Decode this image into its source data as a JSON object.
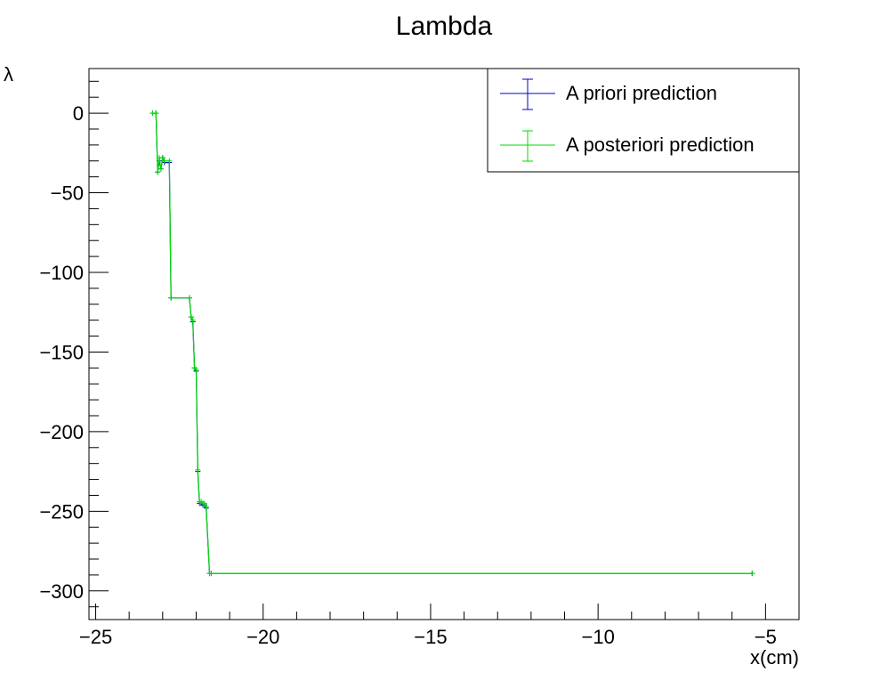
{
  "chart_data": {
    "type": "line",
    "title": "Lambda",
    "xlabel": "x(cm)",
    "ylabel": "λ",
    "xlim": [
      -25.2,
      -4.0
    ],
    "ylim": [
      -318,
      28
    ],
    "x_ticks": [
      {
        "value": -25,
        "label": "−25"
      },
      {
        "value": -20,
        "label": "−20"
      },
      {
        "value": -15,
        "label": "−15"
      },
      {
        "value": -10,
        "label": "−10"
      },
      {
        "value": -5,
        "label": "−5"
      }
    ],
    "y_ticks": [
      {
        "value": 0,
        "label": "0"
      },
      {
        "value": -50,
        "label": "−50"
      },
      {
        "value": -100,
        "label": "−100"
      },
      {
        "value": -150,
        "label": "−150"
      },
      {
        "value": -200,
        "label": "−200"
      },
      {
        "value": -250,
        "label": "−250"
      },
      {
        "value": -300,
        "label": "−300"
      }
    ],
    "legend_position": "top-right",
    "grid": false,
    "series": [
      {
        "name": "A priori prediction",
        "color": "#0000cc",
        "x": [
          -23.3,
          -23.2,
          -23.15,
          -23.1,
          -23.05,
          -23.0,
          -22.95,
          -22.8,
          -22.75,
          -22.2,
          -22.15,
          -22.1,
          -22.05,
          -22.0,
          -21.95,
          -21.9,
          -21.85,
          -21.8,
          -21.75,
          -21.7,
          -21.6,
          -21.55,
          -5.4
        ],
        "y": [
          0,
          0,
          -37,
          -30,
          -35,
          -28,
          -31,
          -31,
          -116,
          -116,
          -128,
          -131,
          -160,
          -162,
          -225,
          -245,
          -245,
          -246,
          -246,
          -248,
          -289,
          -289,
          -289
        ]
      },
      {
        "name": "A posteriori prediction",
        "color": "#00dd00",
        "x": [
          -23.3,
          -23.2,
          -23.15,
          -23.1,
          -23.05,
          -23.0,
          -22.95,
          -22.8,
          -22.75,
          -22.2,
          -22.15,
          -22.1,
          -22.05,
          -22.0,
          -21.95,
          -21.9,
          -21.85,
          -21.8,
          -21.75,
          -21.7,
          -21.6,
          -21.55,
          -5.4
        ],
        "y": [
          0,
          0,
          -37,
          -28,
          -35,
          -28,
          -30,
          -30,
          -116,
          -116,
          -128,
          -130,
          -160,
          -161,
          -224,
          -244,
          -244,
          -245,
          -245,
          -247,
          -289,
          -289,
          -289
        ]
      }
    ]
  }
}
